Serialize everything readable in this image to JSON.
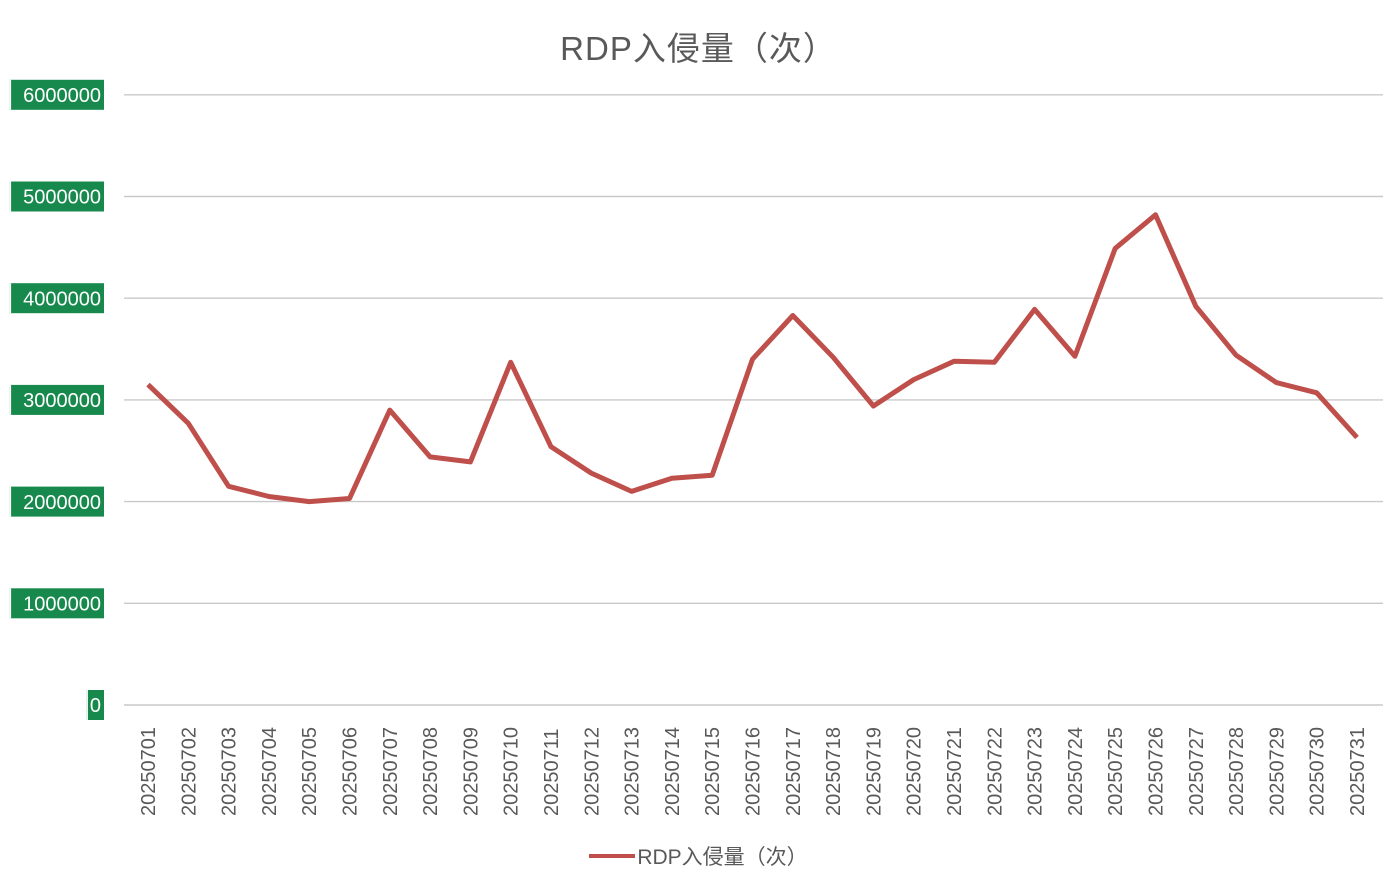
{
  "title": "RDP入侵量（次）",
  "legend": {
    "label": "RDP入侵量（次）"
  },
  "colors": {
    "background": "#ffffff",
    "title_text": "#595959",
    "axis_text": "#595959",
    "grid": "#c9c9c9",
    "tick_bg": "#17894c",
    "tick_bg_edge": "#ffffff",
    "tick_text": "#ffffff",
    "line": "#bf4f4b"
  },
  "chart_data": {
    "type": "line",
    "title": "RDP入侵量（次）",
    "x": [
      "20250701",
      "20250702",
      "20250703",
      "20250704",
      "20250705",
      "20250706",
      "20250707",
      "20250708",
      "20250709",
      "20250710",
      "20250711",
      "20250712",
      "20250713",
      "20250714",
      "20250715",
      "20250716",
      "20250717",
      "20250718",
      "20250719",
      "20250720",
      "20250721",
      "20250722",
      "20250723",
      "20250724",
      "20250725",
      "20250726",
      "20250727",
      "20250728",
      "20250729",
      "20250730",
      "20250731"
    ],
    "series": [
      {
        "name": "RDP入侵量（次）",
        "color": "#bf4f4b",
        "values": [
          3150000,
          2770000,
          2150000,
          2050000,
          2000000,
          2030000,
          2900000,
          2440000,
          2390000,
          3370000,
          2540000,
          2280000,
          2100000,
          2230000,
          2260000,
          3400000,
          3830000,
          3420000,
          2940000,
          3200000,
          3380000,
          3370000,
          3890000,
          3430000,
          4490000,
          4820000,
          3920000,
          3440000,
          3170000,
          3070000,
          2630000
        ]
      }
    ],
    "xlabel": "",
    "ylabel": "",
    "ylim": [
      0,
      6000000
    ],
    "yticks": [
      0,
      1000000,
      2000000,
      3000000,
      4000000,
      5000000,
      6000000
    ],
    "grid": "horizontal",
    "legend_position": "bottom"
  }
}
